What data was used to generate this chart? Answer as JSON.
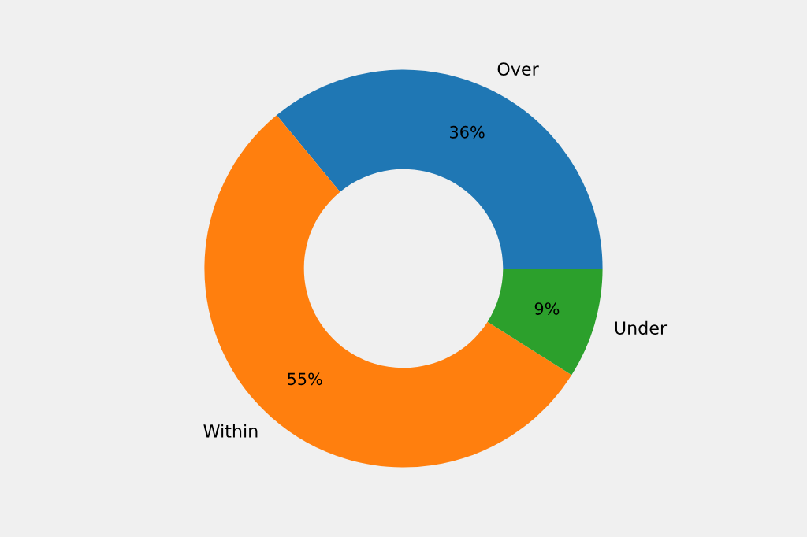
{
  "chart_data": {
    "type": "donut",
    "categories": [
      "Over",
      "Within",
      "Under"
    ],
    "values": [
      36,
      55,
      9
    ],
    "colors": [
      "#1f77b4",
      "#ff7f0e",
      "#2ca02c"
    ],
    "value_labels": [
      "36%",
      "55%",
      "9%"
    ]
  }
}
